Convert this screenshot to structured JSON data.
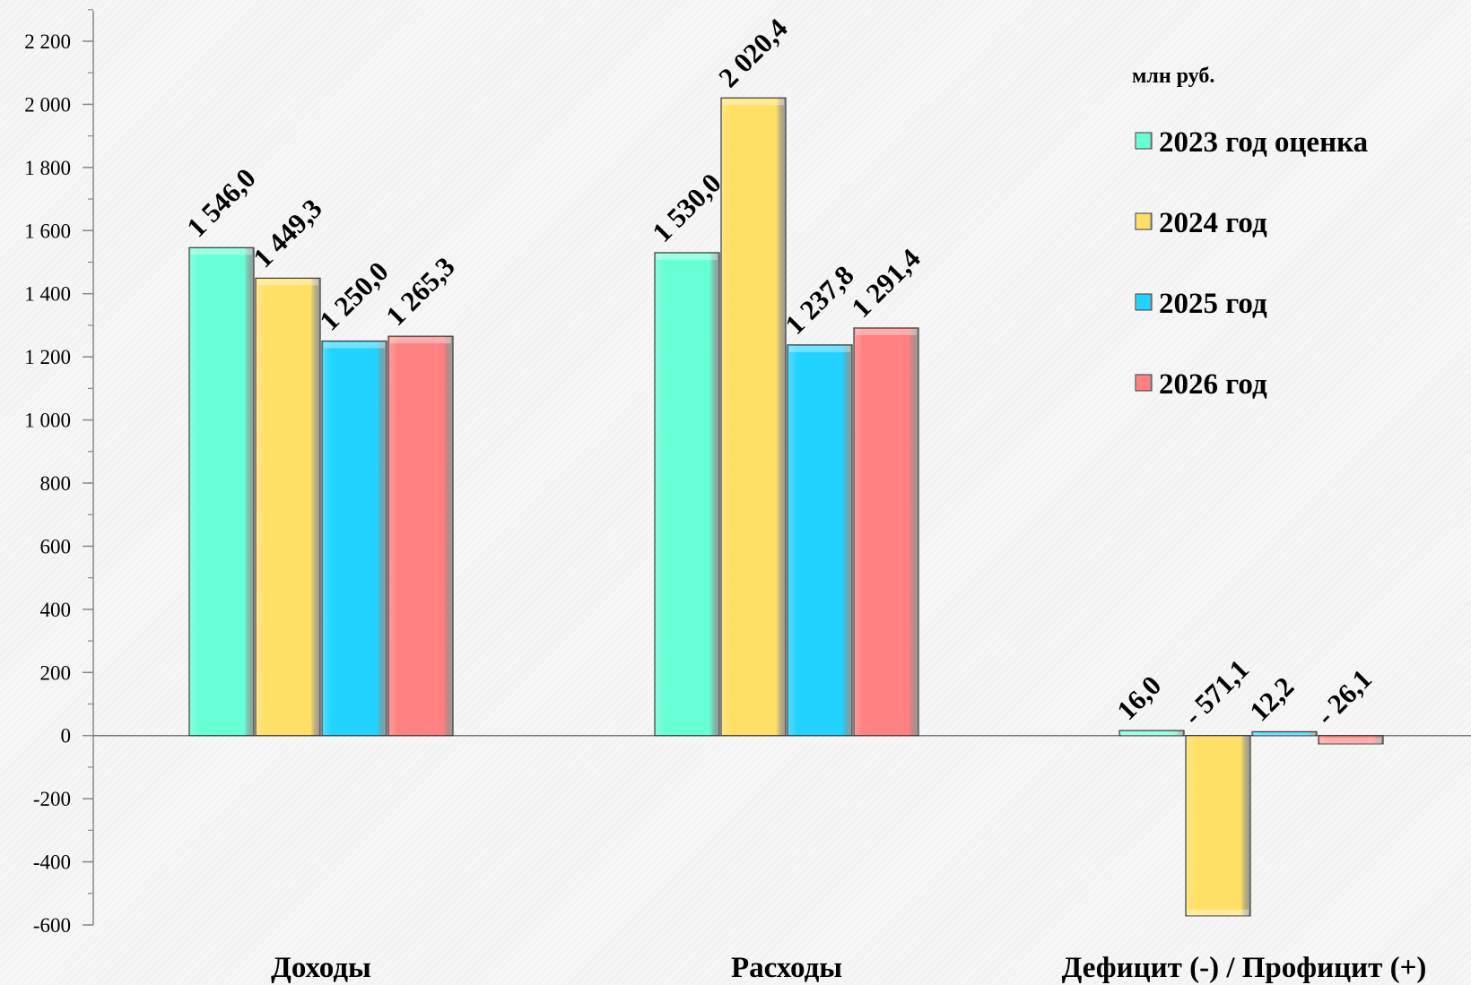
{
  "chart_data": {
    "type": "bar",
    "title": "",
    "unit_label": "млн руб.",
    "categories": [
      "Доходы",
      "Расходы",
      "Дефицит (-) / Профицит (+)"
    ],
    "ylim": [
      -600,
      2200
    ],
    "y_major_step": 200,
    "y_minor_step": 100,
    "y_tick_labels": [
      "-600",
      "-400",
      "-200",
      "0",
      "200",
      "400",
      "600",
      "800",
      "1 000",
      "1 200",
      "1 400",
      "1 600",
      "1 800",
      "2 000",
      "2 200"
    ],
    "grid": false,
    "legend_position": "top-right",
    "series": [
      {
        "name": "2023 год оценка",
        "color": "#66ffd6",
        "values": [
          1546.0,
          1530.0,
          16.0
        ],
        "labels": [
          "1 546,0",
          "1 530,0",
          "16,0"
        ]
      },
      {
        "name": "2024 год",
        "color": "#ffe066",
        "values": [
          1449.3,
          2020.4,
          -571.1
        ],
        "labels": [
          "1 449,3",
          "2 020,4",
          "- 571,1"
        ]
      },
      {
        "name": "2025 год",
        "color": "#22d3ff",
        "values": [
          1250.0,
          1237.8,
          12.2
        ],
        "labels": [
          "1 250,0",
          "1 237,8",
          "12,2"
        ]
      },
      {
        "name": "2026 год",
        "color": "#ff8080",
        "values": [
          1265.3,
          1291.4,
          -26.1
        ],
        "labels": [
          "1 265,3",
          "1 291,4",
          "- 26,1"
        ]
      }
    ]
  }
}
